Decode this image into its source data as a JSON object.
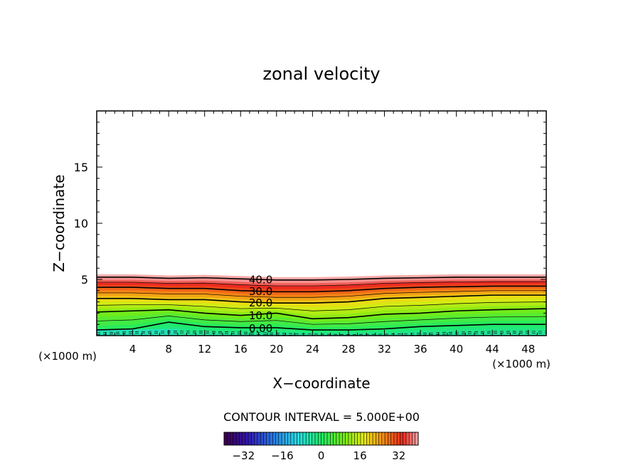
{
  "chart_data": {
    "type": "contour",
    "title": "zonal velocity",
    "xlabel": "X−coordinate",
    "ylabel": "Z−coordinate",
    "x_unit_left": "(×1000 m)",
    "x_unit_right": "(×1000 m)",
    "xlim": [
      0,
      50
    ],
    "ylim": [
      0,
      20
    ],
    "x_ticks": [
      4,
      8,
      12,
      16,
      20,
      24,
      28,
      32,
      36,
      40,
      44,
      48
    ],
    "y_ticks": [
      5,
      10,
      15
    ],
    "contour_levels": [
      {
        "label": "40.0",
        "value": 40,
        "x": 16.5,
        "z": [
          5.2,
          5.2,
          5.1,
          5.15,
          5.05,
          4.95,
          4.95,
          5.0,
          5.1,
          5.15,
          5.2,
          5.2,
          5.2
        ]
      },
      {
        "label": "30.0",
        "value": 30,
        "x": 16.5,
        "z": [
          4.3,
          4.3,
          4.2,
          4.2,
          4.0,
          3.9,
          3.9,
          4.0,
          4.2,
          4.3,
          4.35,
          4.4,
          4.4
        ]
      },
      {
        "label": "20.0",
        "value": 20,
        "x": 16.5,
        "z": [
          3.3,
          3.3,
          3.2,
          3.2,
          3.0,
          2.9,
          2.9,
          3.0,
          3.3,
          3.4,
          3.5,
          3.6,
          3.6
        ]
      },
      {
        "label": "10.0",
        "value": 10,
        "x": 16.5,
        "z": [
          2.1,
          2.2,
          2.3,
          2.0,
          1.8,
          2.0,
          1.5,
          1.6,
          1.9,
          2.0,
          2.2,
          2.3,
          2.4
        ]
      },
      {
        "label": "0.00",
        "value": 0,
        "x": 16.5,
        "z": [
          0.5,
          0.6,
          1.2,
          0.8,
          0.7,
          0.7,
          0.5,
          0.5,
          0.6,
          0.8,
          0.9,
          1.0,
          1.0
        ]
      }
    ],
    "contour_x": [
      0,
      4,
      8,
      12,
      16,
      20,
      24,
      28,
      32,
      36,
      40,
      44,
      50
    ],
    "colorbar": {
      "title": "CONTOUR INTERVAL = 5.000E+00",
      "ticks": [
        -32,
        -16,
        0,
        16,
        32
      ],
      "tick_labels": [
        "−32",
        "−16",
        "0",
        "16",
        "32"
      ],
      "range": [
        -40,
        40
      ]
    }
  }
}
